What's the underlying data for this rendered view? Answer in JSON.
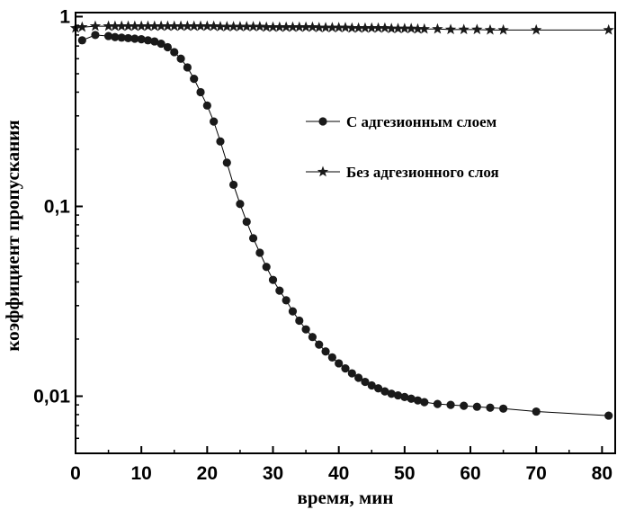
{
  "chart_data": {
    "type": "scatter",
    "xlabel": "время, мин",
    "ylabel": "коэффициент пропускания",
    "xlim": [
      0,
      82
    ],
    "ylim": [
      0.005,
      1.05
    ],
    "yscale": "log",
    "xticks": [
      0,
      10,
      20,
      30,
      40,
      50,
      60,
      70,
      80
    ],
    "xtick_labels": [
      "0",
      "10",
      "20",
      "30",
      "40",
      "50",
      "60",
      "70",
      "80"
    ],
    "yticks": [
      0.01,
      0.1,
      1
    ],
    "ytick_labels": [
      "0,01",
      "0,1",
      "1"
    ],
    "grid": false,
    "legend_position": "center-right",
    "series": [
      {
        "name": "С адгезионным слоем",
        "marker": "circle",
        "color": "#1a1a1a",
        "x": [
          1,
          3,
          5,
          6,
          7,
          8,
          9,
          10,
          11,
          12,
          13,
          14,
          15,
          16,
          17,
          18,
          19,
          20,
          21,
          22,
          23,
          24,
          25,
          26,
          27,
          28,
          29,
          30,
          31,
          32,
          33,
          34,
          35,
          36,
          37,
          38,
          39,
          40,
          41,
          42,
          43,
          44,
          45,
          46,
          47,
          48,
          49,
          50,
          51,
          52,
          53,
          55,
          57,
          59,
          61,
          63,
          65,
          70,
          81
        ],
        "y": [
          0.75,
          0.8,
          0.79,
          0.78,
          0.775,
          0.77,
          0.765,
          0.76,
          0.75,
          0.74,
          0.72,
          0.69,
          0.65,
          0.6,
          0.54,
          0.47,
          0.4,
          0.34,
          0.28,
          0.22,
          0.17,
          0.13,
          0.103,
          0.083,
          0.068,
          0.057,
          0.048,
          0.041,
          0.036,
          0.032,
          0.028,
          0.025,
          0.0225,
          0.0205,
          0.0187,
          0.0172,
          0.016,
          0.0149,
          0.014,
          0.0132,
          0.0125,
          0.0119,
          0.0114,
          0.011,
          0.0106,
          0.0103,
          0.0101,
          0.0099,
          0.0097,
          0.0095,
          0.0093,
          0.0091,
          0.009,
          0.0089,
          0.0088,
          0.0087,
          0.0086,
          0.0083,
          0.0079
        ]
      },
      {
        "name": "Без адгезионного слоя",
        "marker": "star",
        "color": "#1a1a1a",
        "x": [
          0,
          1,
          3,
          5,
          6,
          7,
          8,
          9,
          10,
          11,
          12,
          13,
          14,
          15,
          16,
          17,
          18,
          19,
          20,
          21,
          22,
          23,
          24,
          25,
          26,
          27,
          28,
          29,
          30,
          31,
          32,
          33,
          34,
          35,
          36,
          37,
          38,
          39,
          40,
          41,
          42,
          43,
          44,
          45,
          46,
          47,
          48,
          49,
          50,
          51,
          52,
          53,
          55,
          57,
          59,
          61,
          63,
          65,
          70,
          81
        ],
        "y": [
          0.87,
          0.88,
          0.89,
          0.89,
          0.89,
          0.89,
          0.89,
          0.89,
          0.89,
          0.89,
          0.89,
          0.89,
          0.89,
          0.89,
          0.89,
          0.89,
          0.89,
          0.89,
          0.89,
          0.89,
          0.885,
          0.885,
          0.885,
          0.885,
          0.885,
          0.885,
          0.885,
          0.88,
          0.88,
          0.88,
          0.88,
          0.88,
          0.88,
          0.88,
          0.88,
          0.875,
          0.875,
          0.875,
          0.875,
          0.875,
          0.87,
          0.87,
          0.87,
          0.87,
          0.87,
          0.87,
          0.865,
          0.865,
          0.865,
          0.865,
          0.86,
          0.86,
          0.86,
          0.855,
          0.855,
          0.855,
          0.85,
          0.85,
          0.85,
          0.85
        ]
      }
    ]
  }
}
